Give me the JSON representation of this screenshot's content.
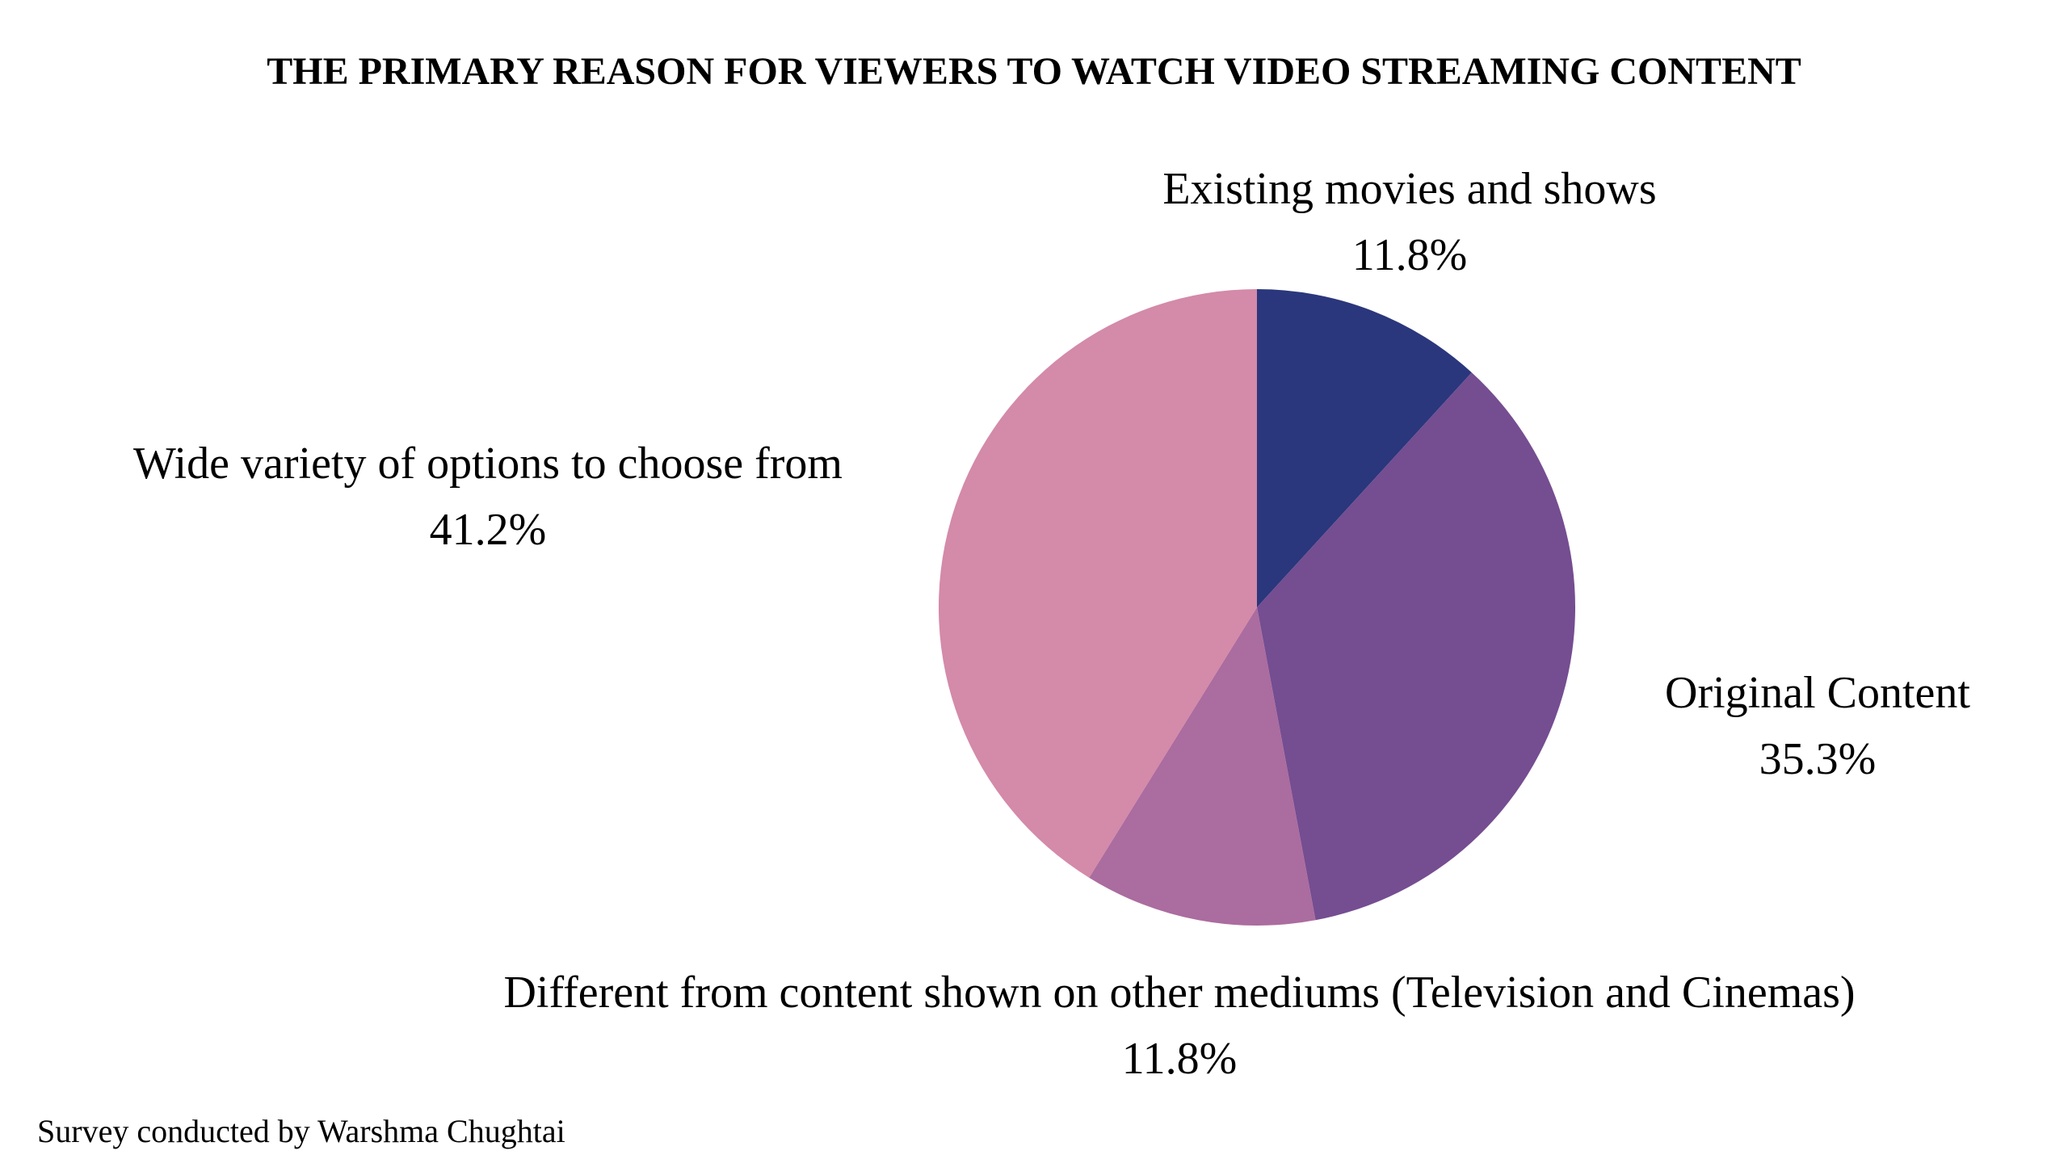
{
  "chart_data": {
    "type": "pie",
    "title": "THE PRIMARY REASON FOR VIEWERS TO WATCH VIDEO STREAMING CONTENT",
    "unit": "%",
    "slices": [
      {
        "label": "Existing movies and shows",
        "value": 11.8,
        "value_label": "11.8%",
        "color": "#2a377c"
      },
      {
        "label": "Original Content",
        "value": 35.3,
        "value_label": "35.3%",
        "color": "#754d91"
      },
      {
        "label": "Different from content shown on other mediums (Television and Cinemas)",
        "value": 11.8,
        "value_label": "11.8%",
        "color": "#ab6c9f"
      },
      {
        "label": "Wide variety of options to choose from",
        "value": 41.2,
        "value_label": "41.2%",
        "color": "#d48aa9"
      }
    ],
    "start_angle": "12 o'clock",
    "direction": "clockwise",
    "legend": "none"
  },
  "footer": {
    "note": "Survey conducted by Warshma Chughtai"
  }
}
